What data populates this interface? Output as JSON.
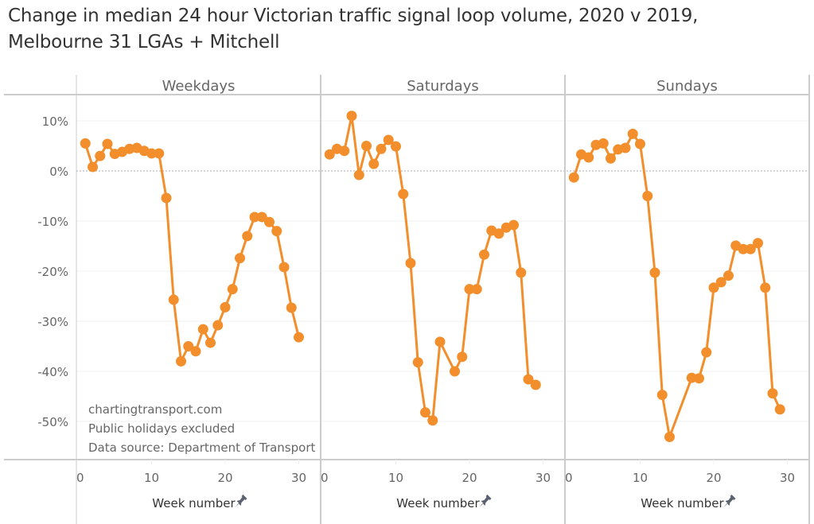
{
  "title_lines": [
    "Change in median 24 hour Victorian traffic signal loop volume, 2020 v 2019,",
    "Melbourne 31 LGAs + Mitchell"
  ],
  "annotation_lines": [
    "chartingtransport.com",
    "Public holidays excluded",
    "Data source: Department of Transport"
  ],
  "colors": {
    "series": "#F28E2B",
    "text": "#666666",
    "axis_title": "#333333",
    "border": "#CCCCCC",
    "grid": "#F0F0F0",
    "zero_line": "#AAAAAA",
    "pin": "#5A6270"
  },
  "chart_data": {
    "type": "line",
    "title": "Change in median 24 hour Victorian traffic signal loop volume, 2020 v 2019, Melbourne 31 LGAs + Mitchell",
    "ylabel": "",
    "ylim": [
      -57,
      14
    ],
    "yticks": [
      10,
      0,
      -10,
      -20,
      -30,
      -40,
      -50
    ],
    "ytick_labels": [
      "10%",
      "0%",
      "-10%",
      "-20%",
      "-30%",
      "-40%",
      "-50%"
    ],
    "xlim": [
      0,
      32
    ],
    "xticks": [
      0,
      10,
      20,
      30
    ],
    "xtick_labels": [
      "0",
      "10",
      "20",
      "30"
    ],
    "grid": true,
    "legend": "none",
    "panels": [
      {
        "name": "Weekdays",
        "xlabel": "Week number",
        "x": [
          1,
          2,
          3,
          4,
          5,
          6,
          7,
          8,
          9,
          10,
          11,
          12,
          13,
          14,
          15,
          16,
          17,
          18,
          19,
          20,
          21,
          22,
          23,
          24,
          25,
          26,
          27,
          28,
          29,
          30
        ],
        "y": [
          5.5,
          0.8,
          3.0,
          5.4,
          3.4,
          3.8,
          4.4,
          4.6,
          4.0,
          3.5,
          3.5,
          -5.4,
          -25.7,
          -38.0,
          -35.0,
          -36.0,
          -31.6,
          -34.3,
          -30.8,
          -27.2,
          -23.6,
          -17.4,
          -13.0,
          -9.2,
          -9.2,
          -10.2,
          -12.0,
          -19.2,
          -27.3,
          -33.2
        ]
      },
      {
        "name": "Saturdays",
        "xlabel": "Week number",
        "x": [
          1,
          2,
          3,
          4,
          5,
          6,
          7,
          8,
          9,
          10,
          11,
          12,
          13,
          14,
          15,
          16,
          18,
          19,
          20,
          21,
          22,
          23,
          24,
          25,
          26,
          27,
          28,
          29
        ],
        "y": [
          3.3,
          4.4,
          4.0,
          11.0,
          -0.8,
          5.0,
          1.4,
          4.4,
          6.2,
          4.9,
          -4.6,
          -18.4,
          -38.2,
          -48.2,
          -49.8,
          -34.1,
          -40.0,
          -37.1,
          -23.6,
          -23.6,
          -16.7,
          -11.9,
          -12.5,
          -11.3,
          -10.8,
          -20.3,
          -41.6,
          -42.7
        ]
      },
      {
        "name": "Sundays",
        "xlabel": "Week number",
        "x": [
          1,
          2,
          3,
          4,
          5,
          6,
          7,
          8,
          9,
          10,
          11,
          12,
          13,
          14,
          17,
          18,
          19,
          20,
          21,
          22,
          23,
          24,
          25,
          26,
          27,
          28,
          29
        ],
        "y": [
          -1.3,
          3.3,
          2.7,
          5.2,
          5.5,
          2.5,
          4.3,
          4.6,
          7.4,
          5.4,
          -5.0,
          -20.3,
          -44.7,
          -53.1,
          -41.3,
          -41.4,
          -36.2,
          -23.3,
          -22.2,
          -20.9,
          -14.9,
          -15.6,
          -15.6,
          -14.4,
          -23.3,
          -44.4,
          -47.6
        ]
      }
    ]
  }
}
